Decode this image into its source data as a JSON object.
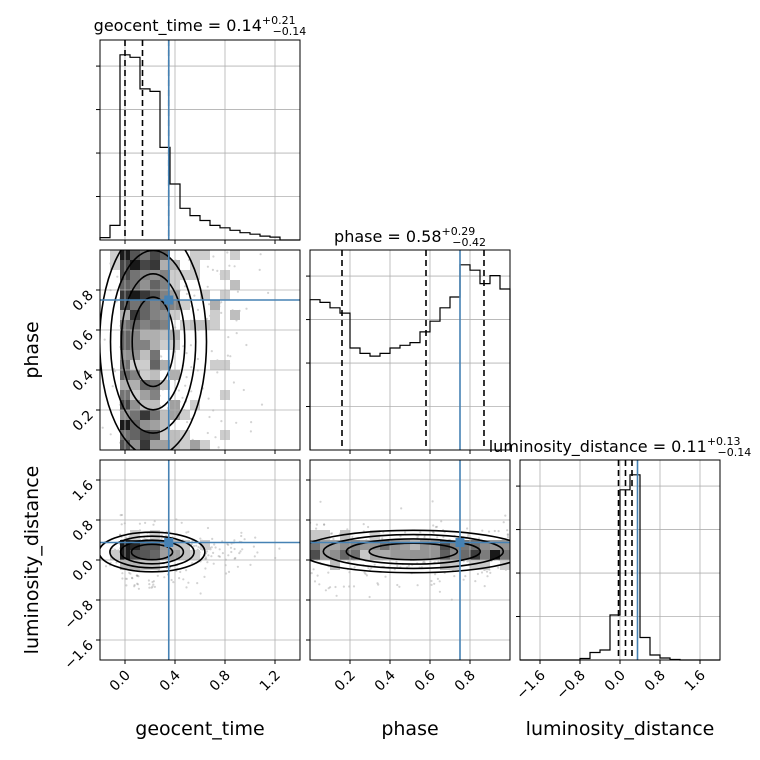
{
  "chart_data": {
    "type": "scatter",
    "kind": "corner-plot",
    "parameters": [
      "geocent_time",
      "phase",
      "luminosity_distance"
    ],
    "truths": {
      "geocent_time": 0.35,
      "phase": 0.75,
      "luminosity_distance": 0.35
    },
    "titles": [
      {
        "param": "geocent_time",
        "text": "geocent_time = 0.14",
        "sup": "+0.21",
        "sub": "−0.14"
      },
      {
        "param": "phase",
        "text": "phase = 0.58",
        "sup": "+0.29",
        "sub": "−0.42"
      },
      {
        "param": "luminosity_distance",
        "text": "luminosity_distance = 0.11",
        "sup": "+0.13",
        "sub": "−0.14"
      }
    ],
    "axes": {
      "geocent_time": {
        "range": [
          -0.2,
          1.4
        ],
        "ticks": [
          0.0,
          0.4,
          0.8,
          1.2
        ],
        "tick_labels": [
          "0.0",
          "0.4",
          "0.8",
          "1.2"
        ],
        "label": "geocent_time"
      },
      "phase": {
        "range": [
          0.0,
          1.0
        ],
        "ticks": [
          0.2,
          0.4,
          0.6,
          0.8
        ],
        "tick_labels": [
          "0.2",
          "0.4",
          "0.6",
          "0.8"
        ],
        "label": "phase"
      },
      "luminosity_distance": {
        "range": [
          -2.0,
          2.0
        ],
        "ticks": [
          -1.6,
          -0.8,
          0.0,
          0.8,
          1.6
        ],
        "tick_labels": [
          "−1.6",
          "−0.8",
          "0.0",
          "0.8",
          "1.6"
        ],
        "label": "luminosity_distance"
      }
    },
    "histograms": {
      "geocent_time": {
        "bin_edges": [
          -0.2,
          -0.12,
          -0.04,
          0.04,
          0.12,
          0.2,
          0.28,
          0.36,
          0.44,
          0.52,
          0.6,
          0.68,
          0.76,
          0.84,
          0.92,
          1.0,
          1.08,
          1.16,
          1.24,
          1.32,
          1.4
        ],
        "counts": [
          0.5,
          3.0,
          38.0,
          37.5,
          31.0,
          30.5,
          19.0,
          11.5,
          6.5,
          5.0,
          4.0,
          3.0,
          2.5,
          2.0,
          1.5,
          1.2,
          0.8,
          0.6,
          0,
          0
        ],
        "quantiles": [
          0.0,
          0.14,
          0.35
        ]
      },
      "phase": {
        "bin_edges": [
          0.0,
          0.05,
          0.1,
          0.15,
          0.2,
          0.25,
          0.3,
          0.35,
          0.4,
          0.45,
          0.5,
          0.55,
          0.6,
          0.65,
          0.7,
          0.75,
          0.8,
          0.85,
          0.9,
          0.95,
          1.0
        ],
        "counts": [
          28.0,
          27.5,
          26.5,
          25.5,
          19.0,
          18.0,
          17.5,
          18.0,
          19.0,
          19.5,
          20.0,
          22.0,
          24.0,
          26.5,
          28.5,
          34.5,
          33.5,
          31.0,
          32.5,
          30.0
        ],
        "quantiles": [
          0.16,
          0.58,
          0.87
        ]
      },
      "luminosity_distance": {
        "bin_edges": [
          -2.0,
          -1.8,
          -1.6,
          -1.4,
          -1.2,
          -1.0,
          -0.8,
          -0.6,
          -0.4,
          -0.2,
          0.0,
          0.2,
          0.4,
          0.6,
          0.8,
          1.0,
          1.2,
          1.4,
          1.6,
          1.8,
          2.0
        ],
        "counts": [
          0,
          0,
          0,
          0,
          0,
          0,
          0.3,
          1.5,
          2.0,
          9.0,
          34.0,
          37.0,
          4.5,
          1.0,
          0.4,
          0.1,
          0,
          0,
          0,
          0
        ],
        "quantiles": [
          -0.03,
          0.11,
          0.24
        ]
      }
    },
    "contour_levels": 4,
    "grid": true
  }
}
